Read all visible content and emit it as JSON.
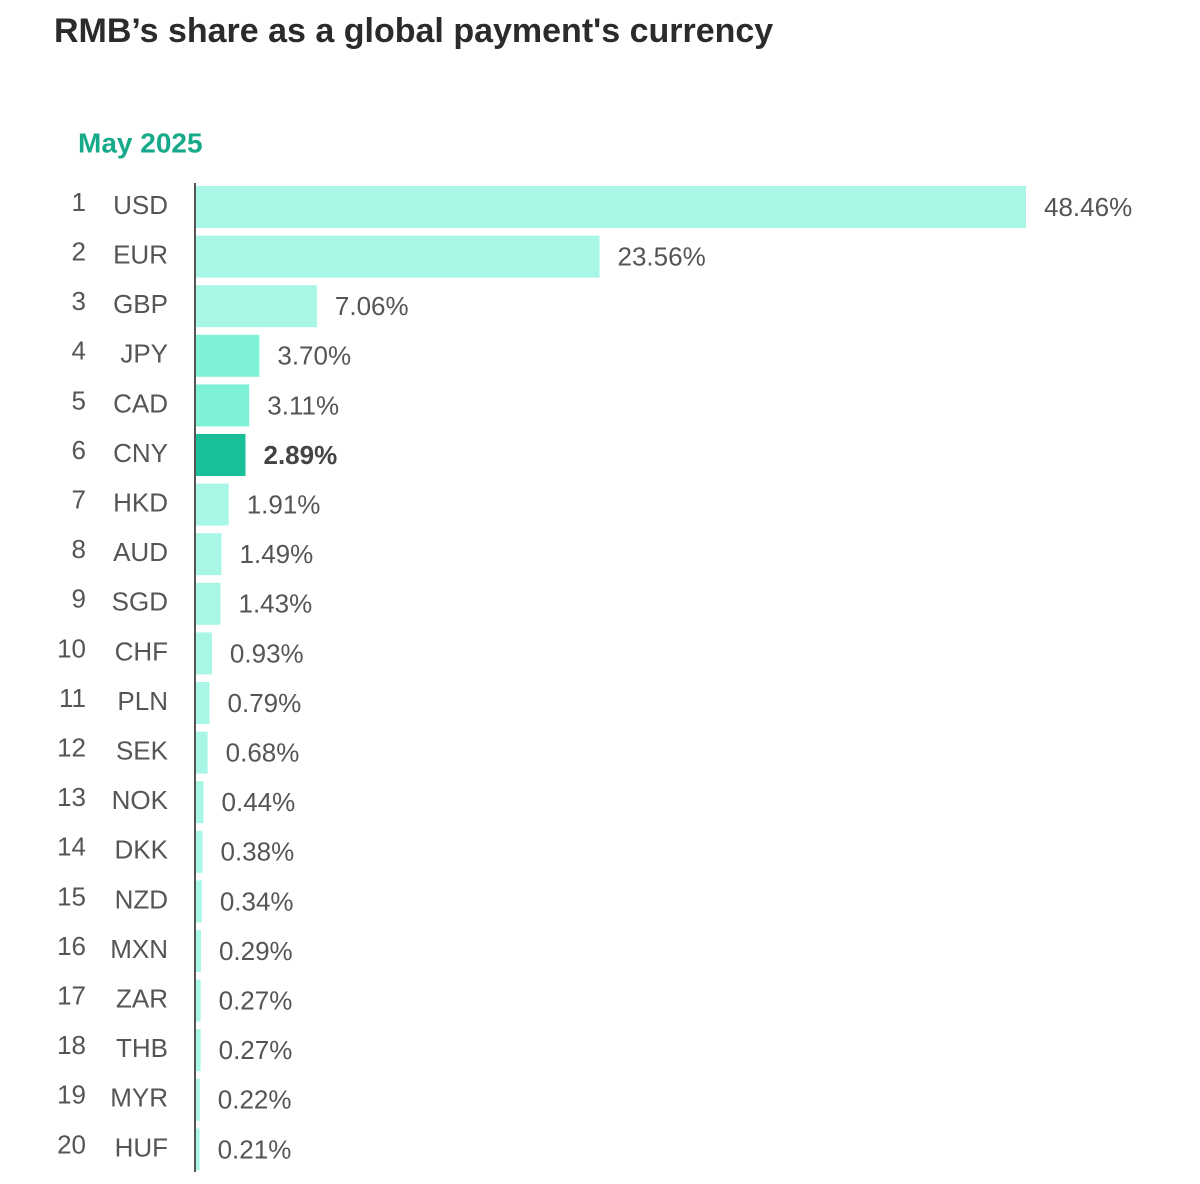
{
  "chart_data": {
    "type": "bar",
    "orientation": "horizontal",
    "title": "RMB’s share as a global payment's currency",
    "subtitle": "May 2025",
    "ranks": [
      1,
      2,
      3,
      4,
      5,
      6,
      7,
      8,
      9,
      10,
      11,
      12,
      13,
      14,
      15,
      16,
      17,
      18,
      19,
      20
    ],
    "categories": [
      "USD",
      "EUR",
      "GBP",
      "JPY",
      "CAD",
      "CNY",
      "HKD",
      "AUD",
      "SGD",
      "CHF",
      "PLN",
      "SEK",
      "NOK",
      "DKK",
      "NZD",
      "MXN",
      "ZAR",
      "THB",
      "MYR",
      "HUF"
    ],
    "values": [
      48.46,
      23.56,
      7.06,
      3.7,
      3.11,
      2.89,
      1.91,
      1.49,
      1.43,
      0.93,
      0.79,
      0.68,
      0.44,
      0.38,
      0.34,
      0.29,
      0.27,
      0.27,
      0.22,
      0.21
    ],
    "value_labels": [
      "48.46%",
      "23.56%",
      "7.06%",
      "3.70%",
      "3.11%",
      "2.89%",
      "1.91%",
      "1.49%",
      "1.43%",
      "0.93%",
      "0.79%",
      "0.68%",
      "0.44%",
      "0.38%",
      "0.34%",
      "0.29%",
      "0.27%",
      "0.27%",
      "0.22%",
      "0.21%"
    ],
    "colors": [
      "#a8f7e6",
      "#a8f7e6",
      "#a8f7e6",
      "#7ef2d7",
      "#7ef2d7",
      "#18bf98",
      "#a8f7e6",
      "#a8f7e6",
      "#a8f7e6",
      "#a8f7e6",
      "#a8f7e6",
      "#a8f7e6",
      "#a8f7e6",
      "#a8f7e6",
      "#a8f7e6",
      "#a8f7e6",
      "#a8f7e6",
      "#a8f7e6",
      "#a8f7e6",
      "#a8f7e6"
    ],
    "highlight": "CNY"
  }
}
